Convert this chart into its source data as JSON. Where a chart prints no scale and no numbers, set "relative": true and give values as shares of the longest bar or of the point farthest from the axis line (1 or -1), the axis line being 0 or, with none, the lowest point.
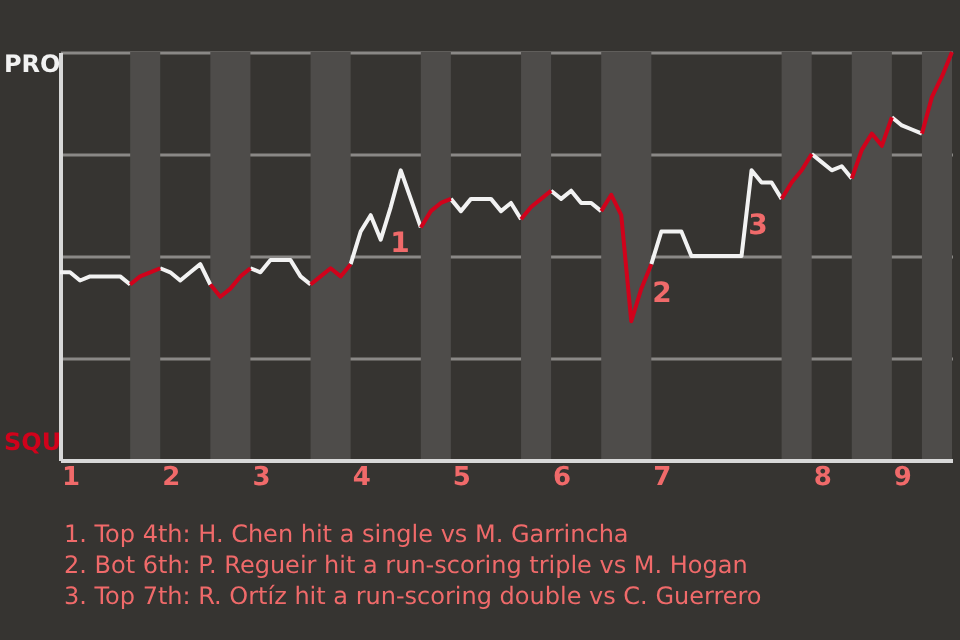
{
  "chart_data": {
    "type": "line",
    "relative": true,
    "grid": "y",
    "categories": [
      null,
      "1",
      null,
      null,
      null,
      null,
      null,
      null,
      null,
      null,
      null,
      "2",
      null,
      null,
      null,
      null,
      null,
      null,
      null,
      null,
      "3",
      null,
      null,
      null,
      null,
      null,
      null,
      null,
      null,
      null,
      "4",
      null,
      null,
      null,
      null,
      null,
      null,
      null,
      null,
      null,
      "5",
      null,
      null,
      null,
      null,
      null,
      null,
      null,
      null,
      null,
      "6",
      null,
      null,
      null,
      null,
      null,
      null,
      null,
      null,
      null,
      "7",
      null,
      null,
      null,
      null,
      null,
      null,
      null,
      null,
      null,
      null,
      null,
      null,
      null,
      null,
      null,
      "8",
      null,
      null,
      null,
      null,
      null,
      null,
      null,
      "9",
      null,
      null,
      null,
      null,
      null
    ],
    "series": [
      {
        "color": "#f2f2f2",
        "values": [
          0.46,
          0.46,
          0.44,
          0.45,
          0.45,
          0.45,
          0.45,
          0.43,
          null,
          null,
          0.47,
          0.46,
          0.44,
          0.46,
          0.48,
          0.43,
          null,
          null,
          null,
          0.47,
          0.46,
          0.49,
          0.49,
          0.49,
          0.45,
          0.43,
          null,
          null,
          null,
          0.48,
          0.56,
          0.6,
          0.54,
          0.62,
          0.71,
          0.64,
          0.57,
          null,
          null,
          0.64,
          0.61,
          0.64,
          0.64,
          0.64,
          0.61,
          0.63,
          0.59,
          null,
          null,
          0.66,
          0.64,
          0.66,
          0.63,
          0.63,
          0.61,
          null,
          null,
          null,
          null,
          0.48,
          0.56,
          0.56,
          0.56,
          0.5,
          0.5,
          0.5,
          0.5,
          0.5,
          0.5,
          0.71,
          0.68,
          0.68,
          0.64,
          null,
          null,
          0.75,
          0.73,
          0.71,
          0.72,
          0.69,
          null,
          null,
          null,
          0.84,
          0.82,
          0.81,
          0.8,
          null,
          null,
          null
        ]
      },
      {
        "color": "#d0021b",
        "values": [
          null,
          null,
          null,
          null,
          null,
          null,
          null,
          0.43,
          0.45,
          0.46,
          0.47,
          null,
          null,
          null,
          null,
          0.43,
          0.4,
          0.42,
          0.45,
          0.47,
          null,
          null,
          null,
          null,
          null,
          0.43,
          0.45,
          0.47,
          0.45,
          0.48,
          null,
          null,
          null,
          null,
          null,
          null,
          0.57,
          0.61,
          0.63,
          0.64,
          null,
          null,
          null,
          null,
          null,
          null,
          0.59,
          0.62,
          0.64,
          0.66,
          null,
          null,
          null,
          null,
          0.61,
          0.65,
          0.6,
          0.34,
          0.42,
          0.48,
          null,
          null,
          null,
          null,
          null,
          null,
          null,
          null,
          null,
          null,
          null,
          null,
          0.64,
          0.68,
          0.71,
          0.75,
          null,
          null,
          null,
          0.69,
          0.76,
          0.8,
          0.77,
          0.84,
          null,
          null,
          0.8,
          0.89,
          0.94,
          1
        ]
      }
    ],
    "annotations": [
      "PRO",
      "SQU",
      "1",
      "2",
      "3",
      "1. Top 4th: H. Chen hit a single vs M. Garrincha",
      "2. Bot 6th: P. Regueir hit a run-scoring triple vs M. Hogan",
      "3. Top 7th: R. Ortíz hit a run-scoring double vs C. Guerrero"
    ]
  }
}
